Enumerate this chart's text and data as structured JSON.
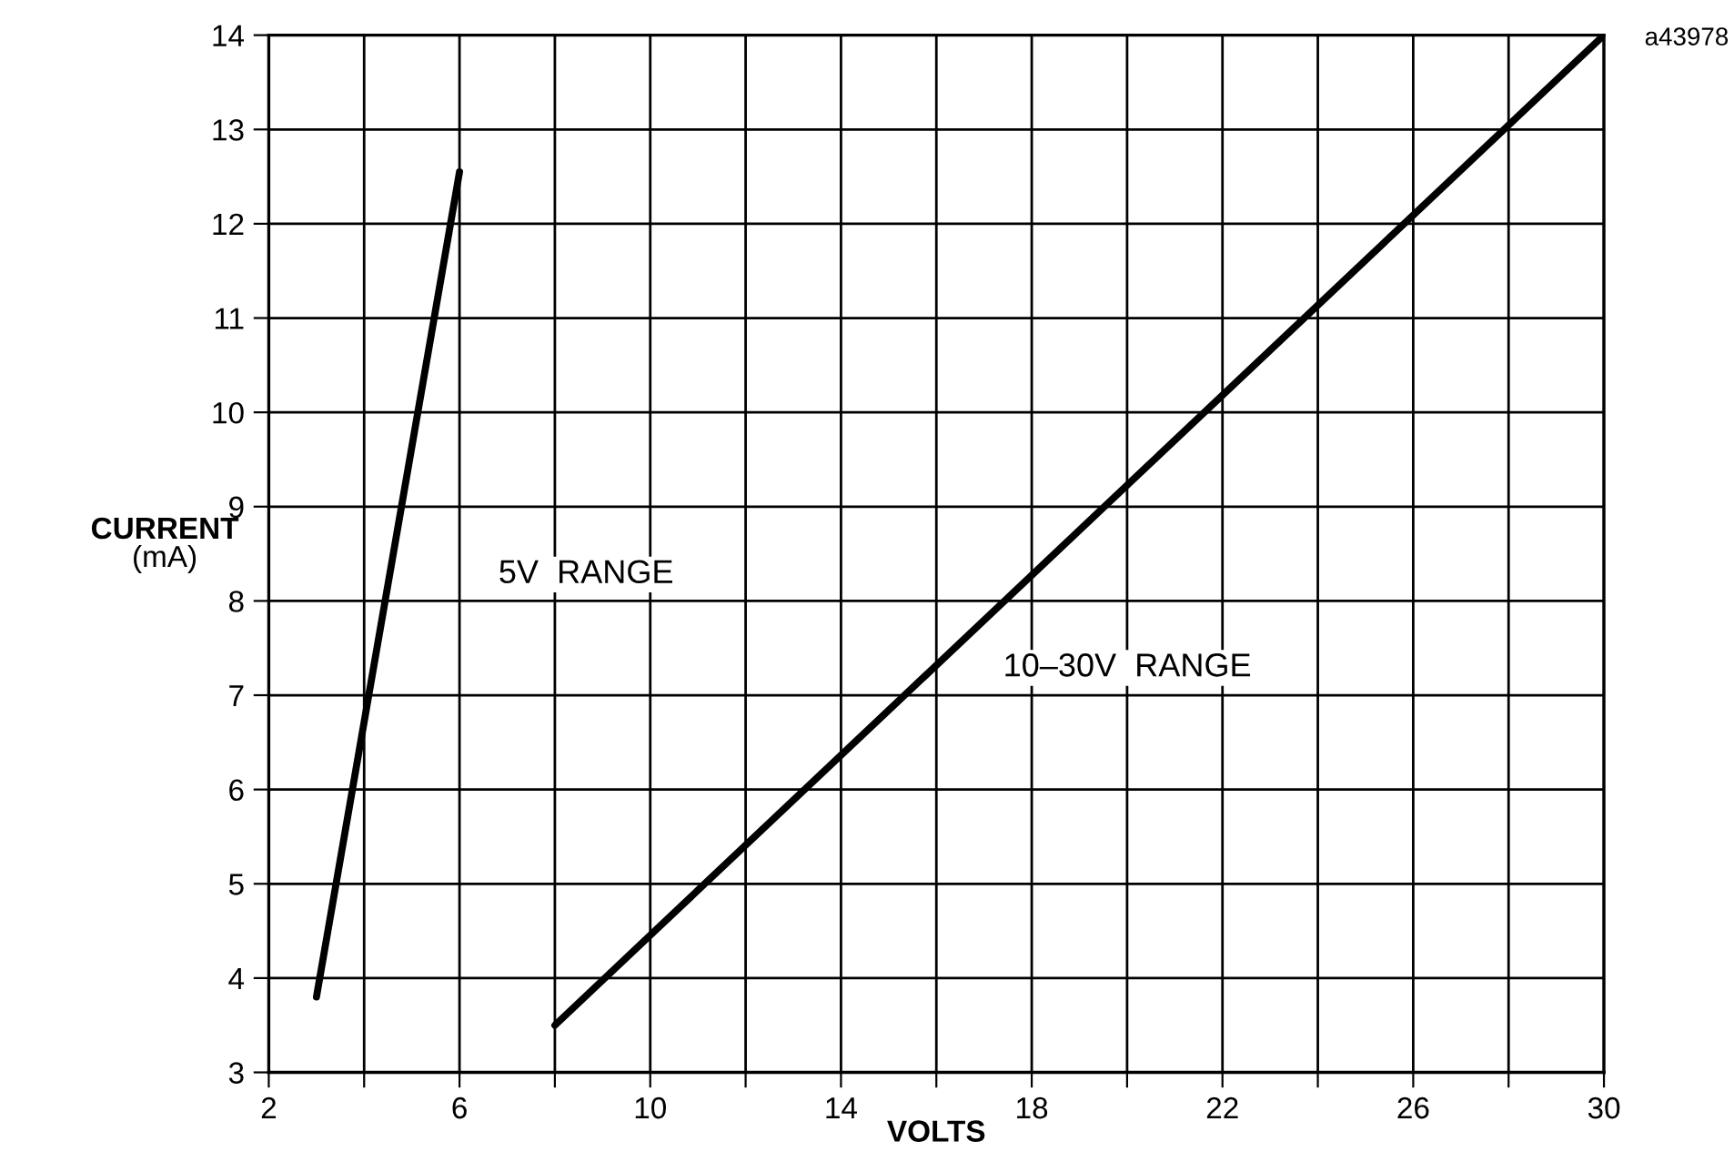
{
  "chart_data": {
    "type": "line",
    "xlabel": "VOLTS",
    "ylabel": "CURRENT\n(mA)",
    "xlim": [
      2,
      30
    ],
    "ylim": [
      3,
      14
    ],
    "xticks": [
      2,
      {
        "value": 4,
        "label": null
      },
      6,
      {
        "value": 8,
        "label": null
      },
      10,
      {
        "value": 12,
        "label": null
      },
      14,
      {
        "value": 16,
        "label": null
      },
      18,
      {
        "value": 20,
        "label": null
      },
      22,
      {
        "value": 24,
        "label": null
      },
      26,
      {
        "value": 28,
        "label": null
      },
      30
    ],
    "yticks": [
      3,
      4,
      5,
      6,
      7,
      8,
      9,
      10,
      11,
      12,
      13,
      14
    ],
    "grid": true,
    "marker": "none",
    "line_style": "solid",
    "series": [
      {
        "color": "#000000",
        "x": [
          3,
          6
        ],
        "values": [
          3.8,
          12.55
        ]
      },
      {
        "color": "#000000",
        "x": [
          8,
          30
        ],
        "values": [
          3.5,
          14
        ]
      }
    ],
    "annotations": [
      "5V  RANGE",
      "10–30V  RANGE",
      "a43978"
    ]
  }
}
